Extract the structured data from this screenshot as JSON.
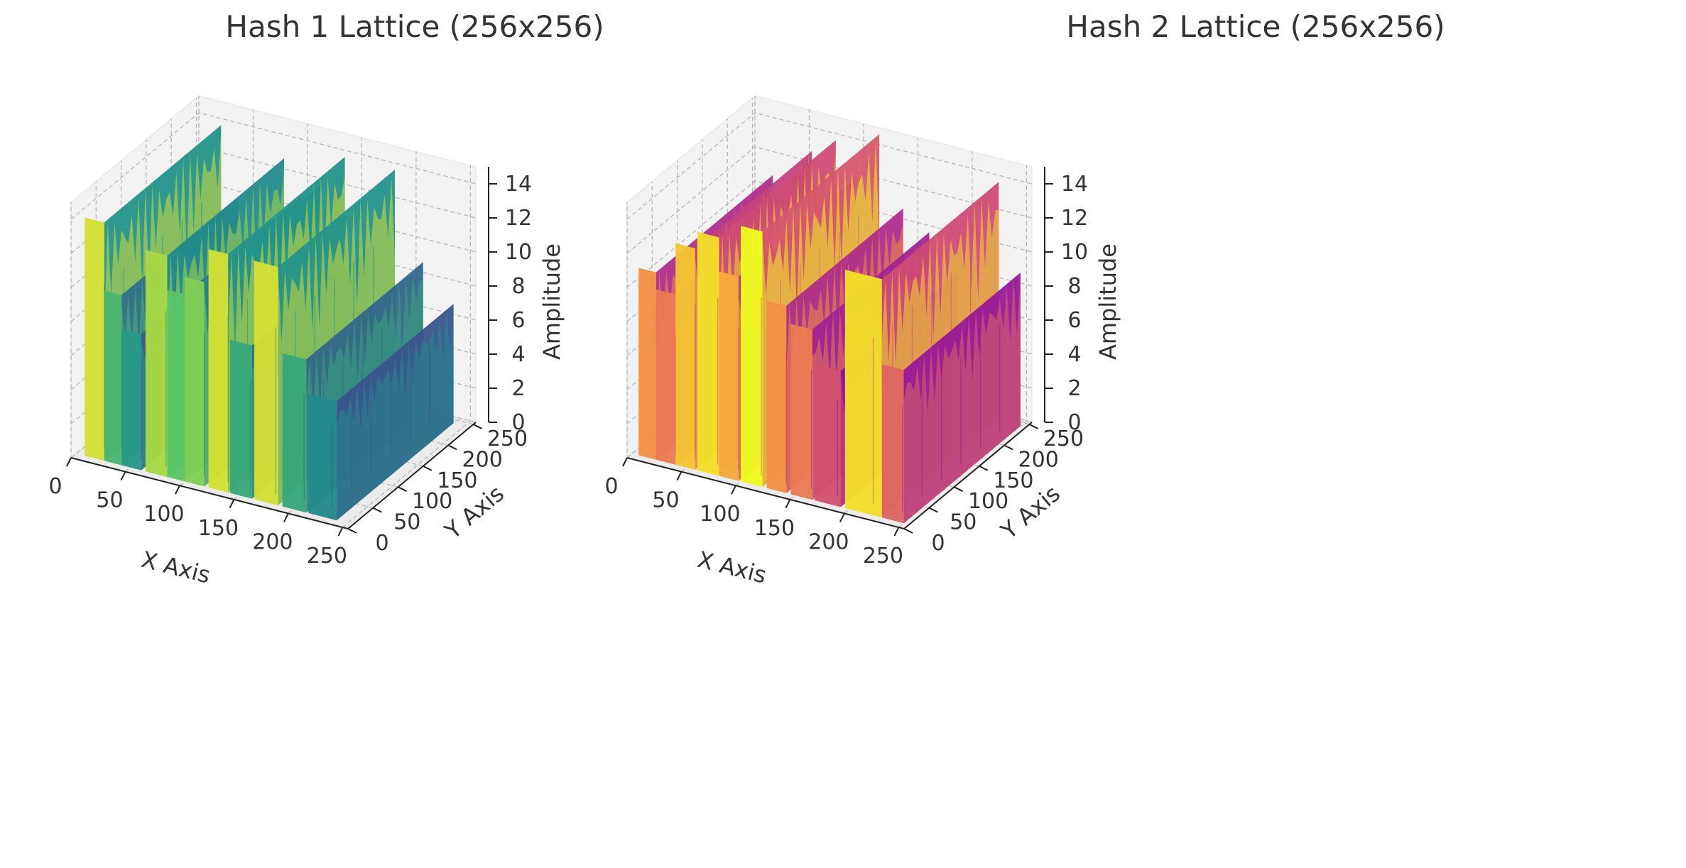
{
  "chart_data": [
    {
      "type": "surface3d",
      "title": "Hash 1 Lattice (256x256)",
      "xlabel": "X Axis",
      "ylabel": "Y Axis",
      "zlabel": "Amplitude",
      "xticks": [
        0,
        50,
        100,
        150,
        200,
        250
      ],
      "yticks": [
        0,
        50,
        100,
        150,
        200,
        250
      ],
      "zticks": [
        0,
        2,
        4,
        6,
        8,
        10,
        12,
        14
      ],
      "xlim": [
        0,
        255
      ],
      "ylim": [
        0,
        255
      ],
      "zlim": [
        0,
        15
      ],
      "colormap": "viridis",
      "grid": true,
      "ridges": [
        {
          "x0": 8,
          "x1": 26,
          "z": 14
        },
        {
          "x0": 26,
          "x1": 42,
          "z": 10
        },
        {
          "x0": 42,
          "x1": 60,
          "z": 8
        },
        {
          "x0": 64,
          "x1": 84,
          "z": 13
        },
        {
          "x0": 84,
          "x1": 100,
          "z": 11
        },
        {
          "x0": 100,
          "x1": 118,
          "z": 12
        },
        {
          "x0": 122,
          "x1": 140,
          "z": 14
        },
        {
          "x0": 142,
          "x1": 162,
          "z": 9
        },
        {
          "x0": 164,
          "x1": 186,
          "z": 14
        },
        {
          "x0": 190,
          "x1": 212,
          "z": 9
        },
        {
          "x0": 214,
          "x1": 240,
          "z": 7
        }
      ]
    },
    {
      "type": "surface3d",
      "title": "Hash 2 Lattice (256x256)",
      "xlabel": "X Axis",
      "ylabel": "Y Axis",
      "zlabel": "Amplitude",
      "xticks": [
        0,
        50,
        100,
        150,
        200,
        250
      ],
      "yticks": [
        0,
        50,
        100,
        150,
        200,
        250
      ],
      "zticks": [
        0,
        2,
        4,
        6,
        8,
        10,
        12,
        14
      ],
      "xlim": [
        0,
        255
      ],
      "ylim": [
        0,
        255
      ],
      "zlim": [
        0,
        15
      ],
      "colormap": "plasma",
      "grid": true,
      "ridges": [
        {
          "x0": 6,
          "x1": 22,
          "z": 11
        },
        {
          "x0": 22,
          "x1": 40,
          "z": 10
        },
        {
          "x0": 40,
          "x1": 58,
          "z": 13
        },
        {
          "x0": 60,
          "x1": 80,
          "z": 14
        },
        {
          "x0": 80,
          "x1": 98,
          "z": 12
        },
        {
          "x0": 100,
          "x1": 120,
          "z": 15
        },
        {
          "x0": 124,
          "x1": 142,
          "z": 11
        },
        {
          "x0": 146,
          "x1": 166,
          "z": 10
        },
        {
          "x0": 168,
          "x1": 192,
          "z": 8
        },
        {
          "x0": 196,
          "x1": 230,
          "z": 14
        },
        {
          "x0": 230,
          "x1": 250,
          "z": 9
        }
      ]
    }
  ]
}
